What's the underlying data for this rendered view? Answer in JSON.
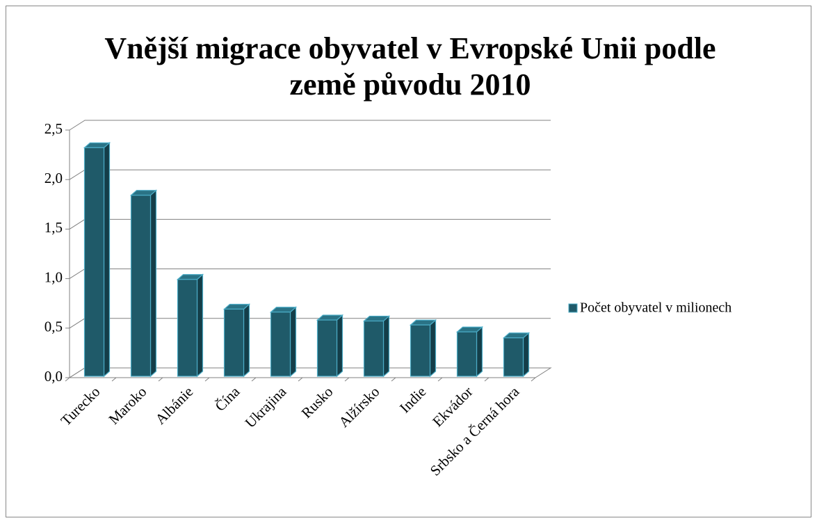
{
  "chart_data": {
    "type": "bar3d",
    "title_lines": [
      "Vnější migrace obyvatel v Evropské Unii podle",
      "země původu 2010"
    ],
    "categories": [
      "Turecko",
      "Maroko",
      "Albánie",
      "Čína",
      "Ukrajina",
      "Rusko",
      "Alžírsko",
      "Indie",
      "Ekvádor",
      "Srbsko a Černá hora"
    ],
    "series": [
      {
        "name": "Počet obyvatel v milionech",
        "color": "#1f5a69",
        "values": [
          2.35,
          1.87,
          1.02,
          0.72,
          0.69,
          0.61,
          0.6,
          0.56,
          0.49,
          0.43
        ]
      }
    ],
    "ylim": [
      0,
      2.5
    ],
    "yticks": [
      {
        "value": 0,
        "label": "0,0"
      },
      {
        "value": 0.5,
        "label": "0,5"
      },
      {
        "value": 1.0,
        "label": "1,0"
      },
      {
        "value": 1.5,
        "label": "1,5"
      },
      {
        "value": 2.0,
        "label": "2,0"
      },
      {
        "value": 2.5,
        "label": "2,5"
      }
    ],
    "grid": true,
    "legend": "right"
  }
}
